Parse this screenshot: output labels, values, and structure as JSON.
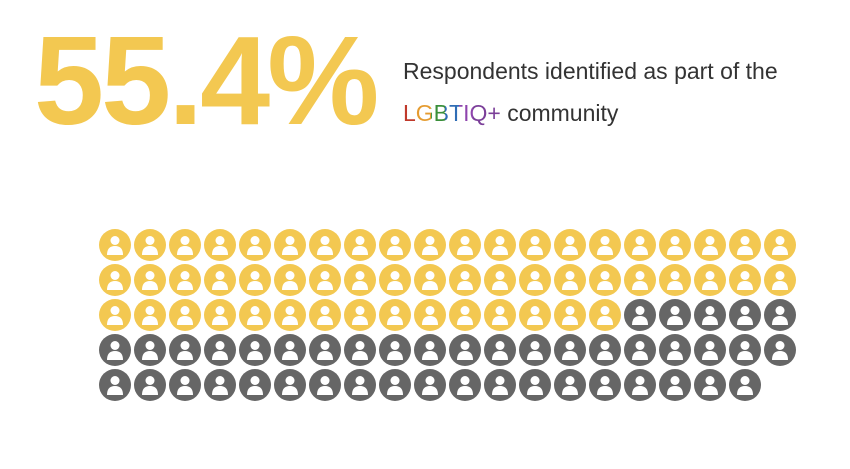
{
  "chart_data": {
    "type": "pictogram",
    "title": "55.4%",
    "subtitle": "Respondents identified as part of the",
    "subtitle_highlight": "LGBTIQ+",
    "subtitle_end": "community",
    "values": [
      55,
      44
    ],
    "colors": [
      "#f3c851",
      "#666666"
    ],
    "title_color": "#f3c851",
    "highlight_colors": [
      "#c0392b",
      "#e59b2f",
      "#3a8f3a",
      "#2f6db5",
      "#8e44ad",
      "#7b3f99",
      "#7b3f99"
    ]
  }
}
